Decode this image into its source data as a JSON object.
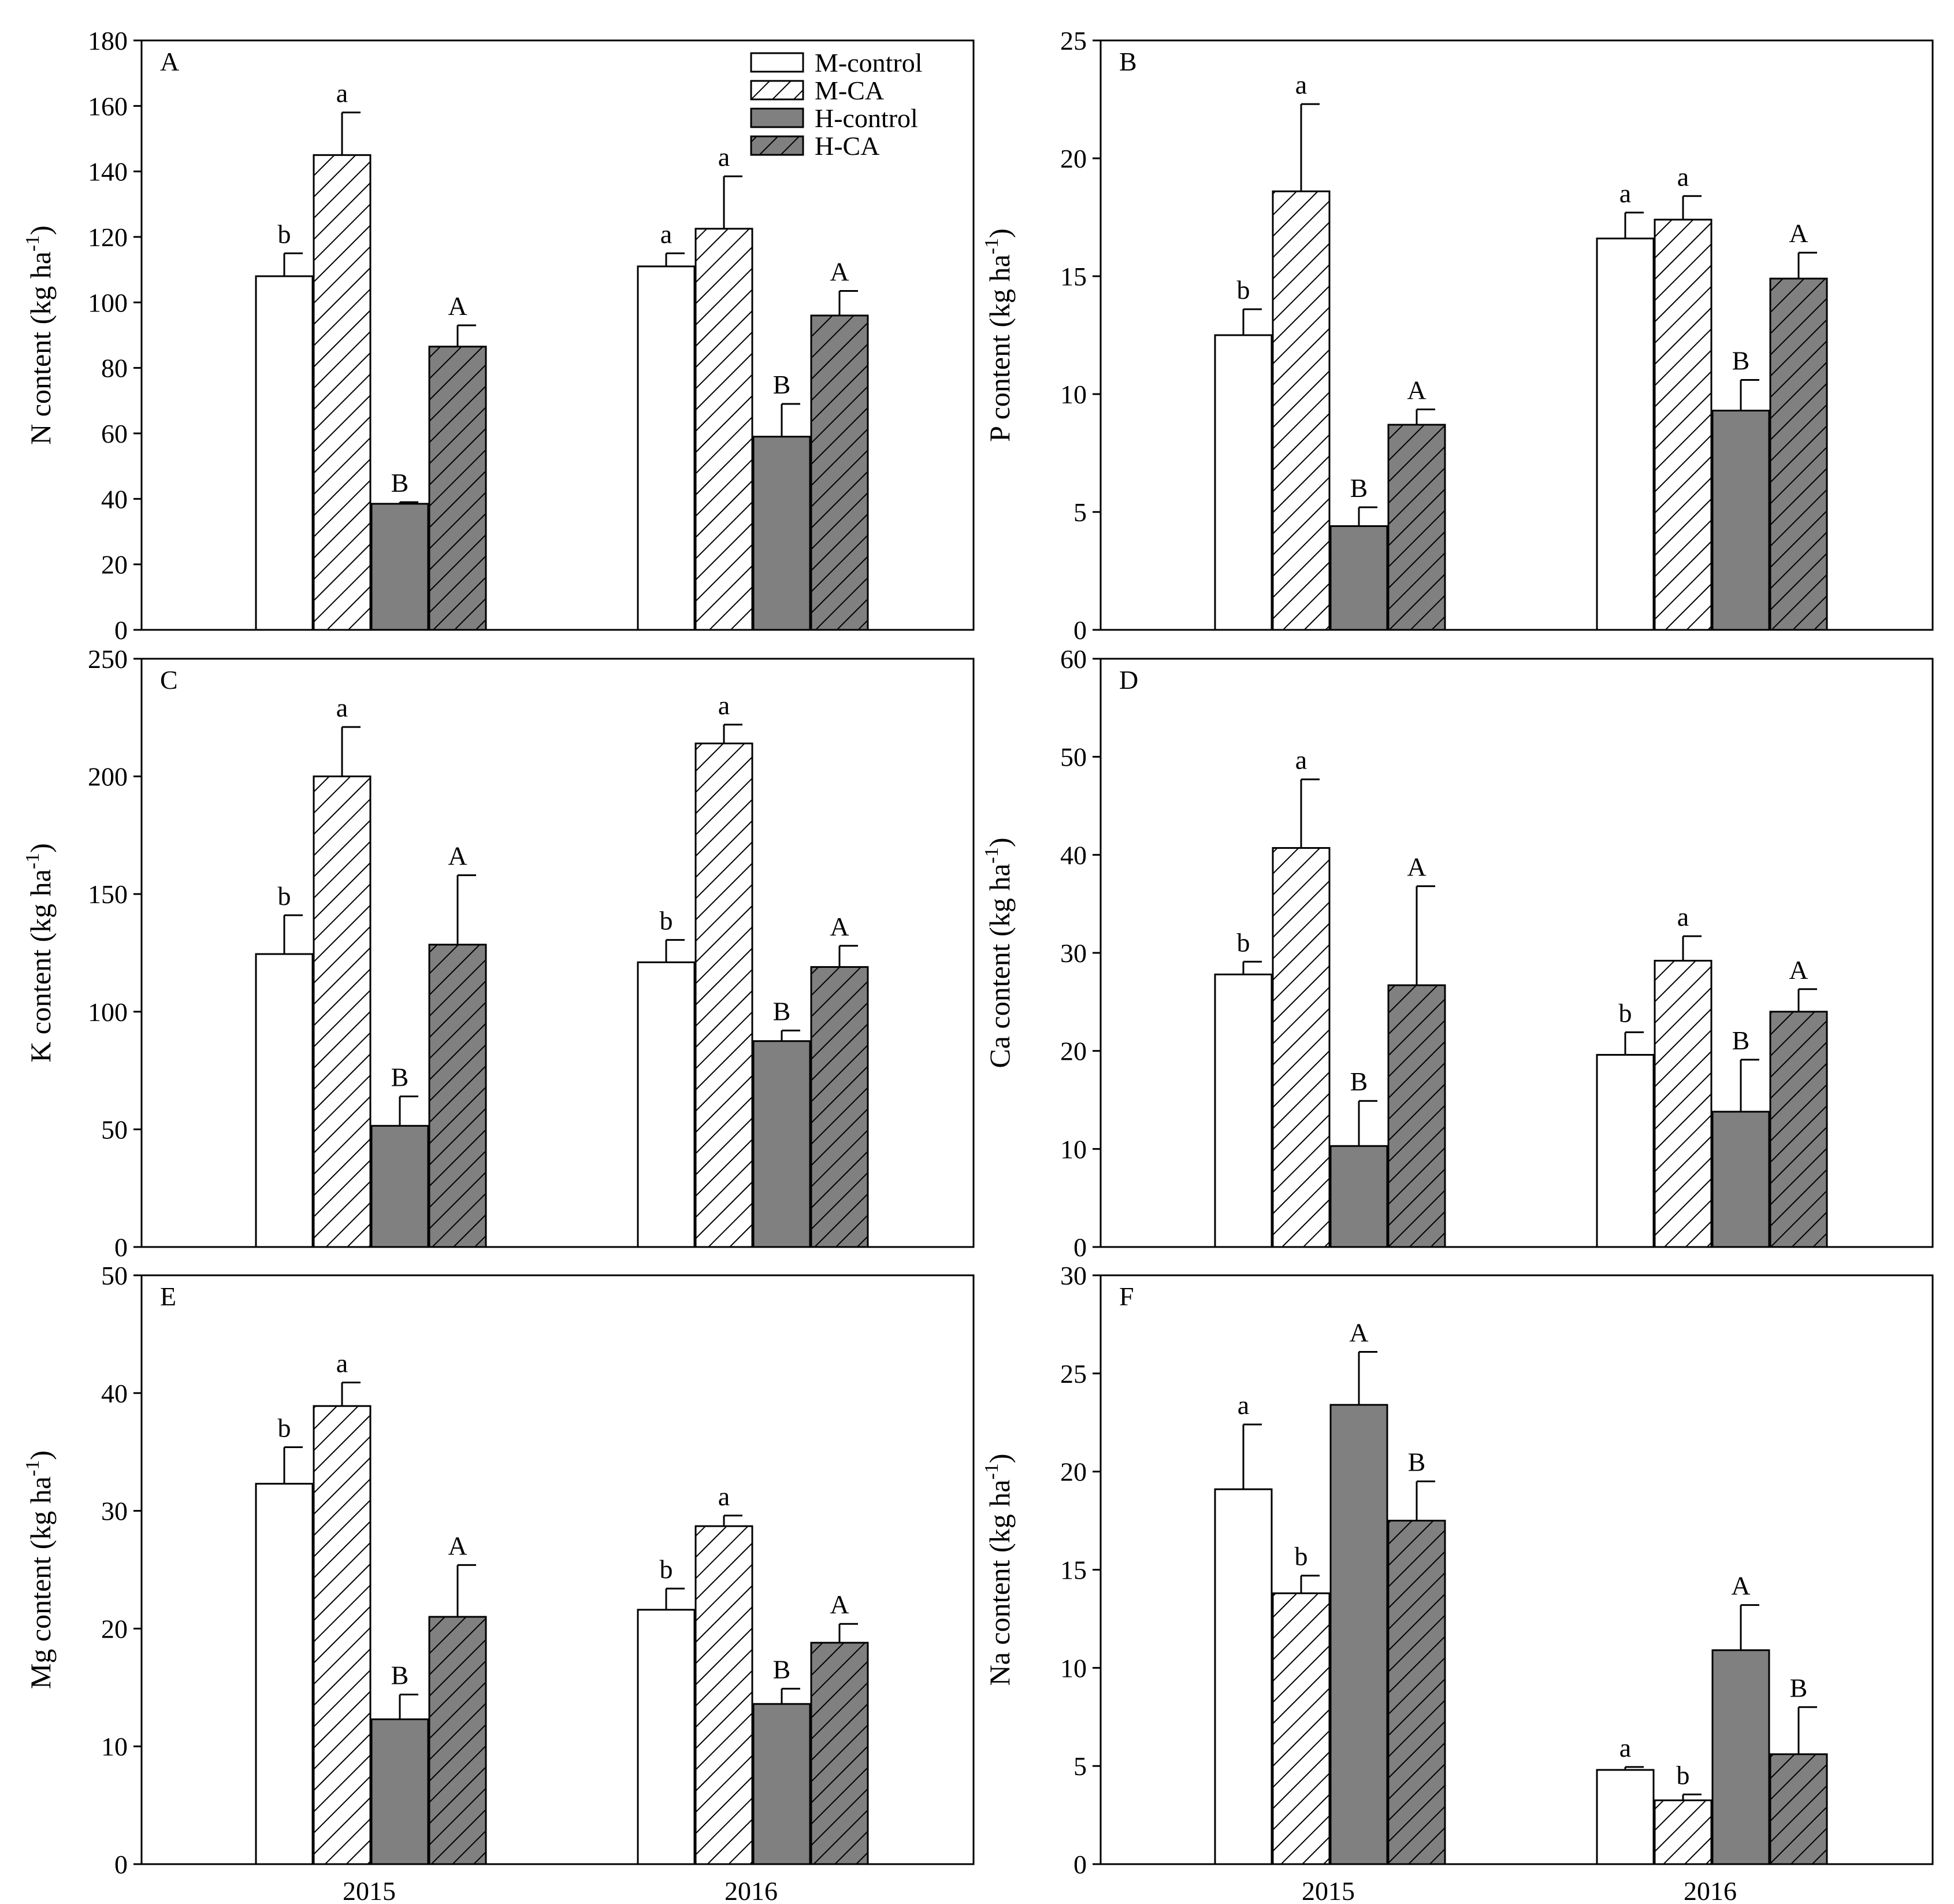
{
  "chart_data": [
    {
      "type": "bar",
      "panel": "A",
      "ylabel": "N content (kg ha",
      "ylabel_sup": "-1",
      "ylabel_close": ")",
      "categories": [
        "2015",
        "2016"
      ],
      "ylim": [
        0,
        180
      ],
      "yticks": [
        0,
        20,
        40,
        60,
        80,
        100,
        120,
        140,
        160,
        180
      ],
      "series": [
        {
          "name": "M-control",
          "values": [
            108,
            111
          ],
          "errors": [
            7,
            4
          ],
          "letters": [
            "b",
            "a"
          ]
        },
        {
          "name": "M-CA",
          "values": [
            145,
            122.5
          ],
          "errors": [
            13,
            16
          ],
          "letters": [
            "a",
            "a"
          ]
        },
        {
          "name": "H-control",
          "values": [
            38.5,
            59
          ],
          "errors": [
            0.5,
            10
          ],
          "letters": [
            "B",
            "B"
          ]
        },
        {
          "name": "H-CA",
          "values": [
            86.5,
            96
          ],
          "errors": [
            6.5,
            7.5
          ],
          "letters": [
            "A",
            "A"
          ]
        }
      ]
    },
    {
      "type": "bar",
      "panel": "B",
      "ylabel": "P content (kg ha",
      "ylabel_sup": "-1",
      "ylabel_close": ")",
      "categories": [
        "2015",
        "2016"
      ],
      "ylim": [
        0,
        25
      ],
      "yticks": [
        0,
        5,
        10,
        15,
        20,
        25
      ],
      "series": [
        {
          "name": "M-control",
          "values": [
            12.5,
            16.6
          ],
          "errors": [
            1.1,
            1.1
          ],
          "letters": [
            "b",
            "a"
          ]
        },
        {
          "name": "M-CA",
          "values": [
            18.6,
            17.4
          ],
          "errors": [
            3.7,
            1.0
          ],
          "letters": [
            "a",
            "a"
          ]
        },
        {
          "name": "H-control",
          "values": [
            4.4,
            9.3
          ],
          "errors": [
            0.8,
            1.3
          ],
          "letters": [
            "B",
            "B"
          ]
        },
        {
          "name": "H-CA",
          "values": [
            8.7,
            14.9
          ],
          "errors": [
            0.65,
            1.1
          ],
          "letters": [
            "A",
            "A"
          ]
        }
      ]
    },
    {
      "type": "bar",
      "panel": "C",
      "ylabel": "K content (kg ha",
      "ylabel_sup": "-1",
      "ylabel_close": ")",
      "categories": [
        "2015",
        "2016"
      ],
      "ylim": [
        0,
        250
      ],
      "yticks": [
        0,
        50,
        100,
        150,
        200,
        250
      ],
      "series": [
        {
          "name": "M-control",
          "values": [
            124.5,
            121
          ],
          "errors": [
            16.5,
            9.5
          ],
          "letters": [
            "b",
            "b"
          ]
        },
        {
          "name": "M-CA",
          "values": [
            200,
            214
          ],
          "errors": [
            21,
            8
          ],
          "letters": [
            "a",
            "a"
          ]
        },
        {
          "name": "H-control",
          "values": [
            51.5,
            87.5
          ],
          "errors": [
            12.5,
            4.5
          ],
          "letters": [
            "B",
            "B"
          ]
        },
        {
          "name": "H-CA",
          "values": [
            128.5,
            119
          ],
          "errors": [
            29.5,
            9
          ],
          "letters": [
            "A",
            "A"
          ]
        }
      ]
    },
    {
      "type": "bar",
      "panel": "D",
      "ylabel": "Ca content (kg ha",
      "ylabel_sup": "-1",
      "ylabel_close": ")",
      "categories": [
        "2015",
        "2016"
      ],
      "ylim": [
        0,
        60
      ],
      "yticks": [
        0,
        10,
        20,
        30,
        40,
        50,
        60
      ],
      "series": [
        {
          "name": "M-control",
          "values": [
            27.8,
            19.6
          ],
          "errors": [
            1.3,
            2.3
          ],
          "letters": [
            "b",
            "b"
          ]
        },
        {
          "name": "M-CA",
          "values": [
            40.7,
            29.2
          ],
          "errors": [
            7,
            2.5
          ],
          "letters": [
            "a",
            "a"
          ]
        },
        {
          "name": "H-control",
          "values": [
            10.3,
            13.8
          ],
          "errors": [
            4.6,
            5.3
          ],
          "letters": [
            "B",
            "B"
          ]
        },
        {
          "name": "H-CA",
          "values": [
            26.7,
            24
          ],
          "errors": [
            10.1,
            2.3
          ],
          "letters": [
            "A",
            "A"
          ]
        }
      ]
    },
    {
      "type": "bar",
      "panel": "E",
      "ylabel": "Mg content (kg ha",
      "ylabel_sup": "-1",
      "ylabel_close": ")",
      "categories": [
        "2015",
        "2016"
      ],
      "ylim": [
        0,
        50
      ],
      "yticks": [
        0,
        10,
        20,
        30,
        40,
        50
      ],
      "series": [
        {
          "name": "M-control",
          "values": [
            32.3,
            21.6
          ],
          "errors": [
            3.1,
            1.8
          ],
          "letters": [
            "b",
            "b"
          ]
        },
        {
          "name": "M-CA",
          "values": [
            38.9,
            28.7
          ],
          "errors": [
            2.0,
            0.9
          ],
          "letters": [
            "a",
            "a"
          ]
        },
        {
          "name": "H-control",
          "values": [
            12.3,
            13.6
          ],
          "errors": [
            2.1,
            1.3
          ],
          "letters": [
            "B",
            "B"
          ]
        },
        {
          "name": "H-CA",
          "values": [
            21,
            18.8
          ],
          "errors": [
            4.4,
            1.6
          ],
          "letters": [
            "A",
            "A"
          ]
        }
      ]
    },
    {
      "type": "bar",
      "panel": "F",
      "ylabel": "Na content (kg ha",
      "ylabel_sup": "-1",
      "ylabel_close": ")",
      "categories": [
        "2015",
        "2016"
      ],
      "ylim": [
        0,
        30
      ],
      "yticks": [
        0,
        5,
        10,
        15,
        20,
        25,
        30
      ],
      "series": [
        {
          "name": "M-control",
          "values": [
            19.1,
            4.8
          ],
          "errors": [
            3.3,
            0.15
          ],
          "letters": [
            "a",
            "a"
          ]
        },
        {
          "name": "M-CA",
          "values": [
            13.8,
            3.25
          ],
          "errors": [
            0.9,
            0.3
          ],
          "letters": [
            "b",
            "b"
          ]
        },
        {
          "name": "H-control",
          "values": [
            23.4,
            10.9
          ],
          "errors": [
            2.7,
            2.3
          ],
          "letters": [
            "A",
            "A"
          ]
        },
        {
          "name": "H-CA",
          "values": [
            17.5,
            5.6
          ],
          "errors": [
            2.0,
            2.4
          ],
          "letters": [
            "B",
            "B"
          ]
        }
      ]
    }
  ],
  "legend": {
    "position": "top-right of panel A",
    "entries": [
      {
        "name": "M-control",
        "fill": "white"
      },
      {
        "name": "M-CA",
        "fill": "hatch-white"
      },
      {
        "name": "H-control",
        "fill": "gray"
      },
      {
        "name": "H-CA",
        "fill": "hatch-gray"
      }
    ]
  },
  "colors": {
    "gray": "#808080",
    "axis": "#000000",
    "background": "#ffffff"
  }
}
